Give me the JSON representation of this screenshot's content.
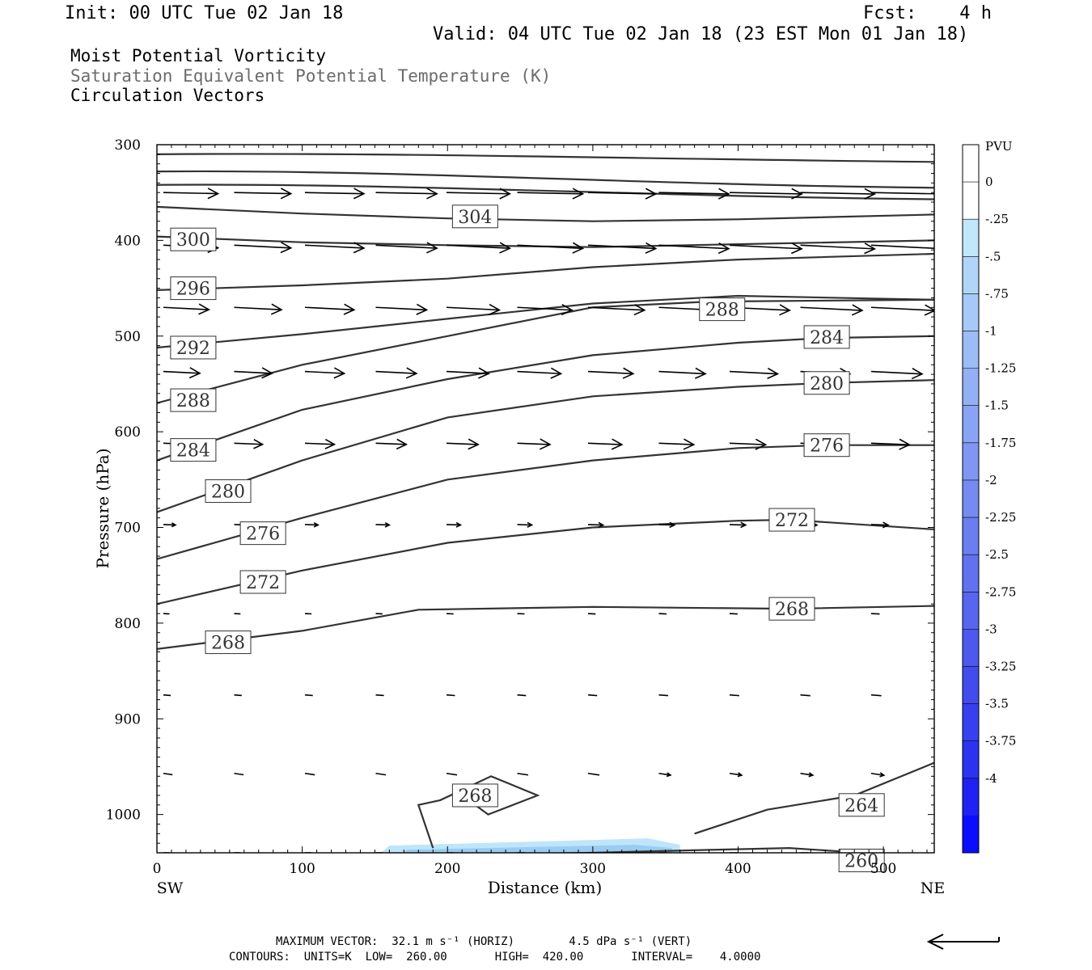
{
  "header": {
    "init": "Init: 00 UTC Tue 02 Jan 18",
    "fcst": "Fcst:    4 h",
    "valid": "Valid: 04 UTC Tue 02 Jan 18 (23 EST Mon 01 Jan 18)",
    "field1": "Moist Potential Vorticity",
    "field2": "Saturation Equivalent Potential Temperature (K)",
    "field3": "Circulation Vectors"
  },
  "footer": {
    "maxvec": "MAXIMUM VECTOR:  32.1 m s⁻¹ (HORIZ)        4.5 dPa s⁻¹ (VERT)",
    "contours": "CONTOURS:  UNITS=K  LOW=  260.00       HIGH=  420.00       INTERVAL=    4.0000"
  },
  "colors": {
    "contour": "#333333",
    "vector": "#000000",
    "pv_fill_light": "#bfe5fa",
    "pv_fill_mid": "#99ccf2"
  },
  "chart_data": {
    "type": "contour",
    "xlabel": "Distance (km)",
    "ylabel": "Pressure (hPa)",
    "x_left_label": "SW",
    "x_right_label": "NE",
    "xlim": [
      0,
      535
    ],
    "ylim": [
      1040,
      300
    ],
    "x_ticks": [
      0,
      100,
      200,
      300,
      400,
      500
    ],
    "y_ticks": [
      300,
      400,
      500,
      600,
      700,
      800,
      900,
      1000
    ],
    "colorbar": {
      "unit": "PVU",
      "labels": [
        "0",
        "-.25",
        "-.5",
        "-.75",
        "-1",
        "-1.25",
        "-1.5",
        "-1.75",
        "-2",
        "-2.25",
        "-2.5",
        "-2.75",
        "-3",
        "-3.25",
        "-3.5",
        "-3.75",
        "-4"
      ],
      "colors": [
        "#ffffff",
        "#ffffff",
        "#c2e6fb",
        "#b1d5f9",
        "#a6c9f7",
        "#9cbcf6",
        "#93b0f5",
        "#89a4f4",
        "#7f97f3",
        "#758bf2",
        "#6b7ef0",
        "#6172ef",
        "#5766ee",
        "#4c59ec",
        "#424ced",
        "#3740ee",
        "#2c33f0",
        "#1f22f3",
        "#0b0dff"
      ]
    },
    "theta_es_contours": [
      {
        "label": "304",
        "label_at": [
          219,
          375
        ],
        "points": [
          [
            0,
            365
          ],
          [
            100,
            372
          ],
          [
            200,
            377
          ],
          [
            300,
            380
          ],
          [
            400,
            378
          ],
          [
            535,
            373
          ]
        ]
      },
      {
        "label": "300",
        "label_at": [
          25,
          399
        ],
        "points": [
          [
            0,
            396
          ],
          [
            100,
            402
          ],
          [
            200,
            405
          ],
          [
            300,
            407
          ],
          [
            400,
            404
          ],
          [
            535,
            400
          ]
        ]
      },
      {
        "label": "296",
        "label_at": [
          25,
          450
        ],
        "points": [
          [
            0,
            452
          ],
          [
            100,
            447
          ],
          [
            200,
            440
          ],
          [
            300,
            428
          ],
          [
            400,
            420
          ],
          [
            535,
            414
          ]
        ]
      },
      {
        "label": "292",
        "label_at": [
          25,
          512
        ],
        "points": [
          [
            0,
            512
          ],
          [
            100,
            498
          ],
          [
            200,
            482
          ],
          [
            300,
            466
          ],
          [
            400,
            458
          ],
          [
            535,
            462
          ]
        ]
      },
      {
        "label": "288",
        "label_at": [
          25,
          567
        ],
        "points": [
          [
            0,
            570
          ],
          [
            100,
            530
          ],
          [
            200,
            500
          ],
          [
            300,
            470
          ],
          [
            380,
            464
          ],
          [
            535,
            462
          ]
        ]
      },
      {
        "label": "288",
        "label_at": [
          389,
          472
        ],
        "points": []
      },
      {
        "label": "284",
        "label_at": [
          25,
          619
        ],
        "points": [
          [
            0,
            630
          ],
          [
            100,
            577
          ],
          [
            200,
            545
          ],
          [
            300,
            520
          ],
          [
            400,
            507
          ],
          [
            460,
            502
          ],
          [
            535,
            500
          ]
        ]
      },
      {
        "label": "284",
        "label_at": [
          461,
          501
        ],
        "points": []
      },
      {
        "label": "280",
        "label_at": [
          49,
          662
        ],
        "points": [
          [
            0,
            684
          ],
          [
            100,
            630
          ],
          [
            200,
            585
          ],
          [
            300,
            563
          ],
          [
            400,
            553
          ],
          [
            460,
            549
          ],
          [
            535,
            546
          ]
        ]
      },
      {
        "label": "280",
        "label_at": [
          461,
          549
        ],
        "points": []
      },
      {
        "label": "276",
        "label_at": [
          73,
          706
        ],
        "points": [
          [
            0,
            733
          ],
          [
            100,
            690
          ],
          [
            200,
            650
          ],
          [
            300,
            630
          ],
          [
            400,
            617
          ],
          [
            460,
            614
          ],
          [
            535,
            614
          ]
        ]
      },
      {
        "label": "276",
        "label_at": [
          461,
          614
        ],
        "points": []
      },
      {
        "label": "272",
        "label_at": [
          73,
          757
        ],
        "points": [
          [
            0,
            780
          ],
          [
            100,
            745
          ],
          [
            200,
            716
          ],
          [
            300,
            700
          ],
          [
            400,
            693
          ],
          [
            435,
            692
          ],
          [
            535,
            702
          ]
        ]
      },
      {
        "label": "272",
        "label_at": [
          437,
          692
        ],
        "points": []
      },
      {
        "label": "268",
        "label_at": [
          49,
          820
        ],
        "points": [
          [
            0,
            827
          ],
          [
            100,
            808
          ],
          [
            180,
            786
          ],
          [
            300,
            783
          ],
          [
            435,
            785
          ],
          [
            535,
            782
          ]
        ]
      },
      {
        "label": "268",
        "label_at": [
          437,
          785
        ],
        "points": []
      },
      {
        "label": "268",
        "label_at": [
          219,
          980
        ],
        "points": [
          [
            210,
            980
          ],
          [
            228,
            1000
          ],
          [
            262,
            980
          ],
          [
            230,
            960
          ],
          [
            195,
            985
          ],
          [
            180,
            990
          ],
          [
            190,
            1035
          ]
        ]
      },
      {
        "label": "264",
        "label_at": [
          485,
          990
        ],
        "points": [
          [
            370,
            1020
          ],
          [
            420,
            995
          ],
          [
            480,
            980
          ],
          [
            535,
            946
          ]
        ]
      },
      {
        "label": "260",
        "label_at": [
          485,
          1048
        ],
        "points": [
          [
            0,
            1045
          ],
          [
            100,
            1043
          ],
          [
            200,
            1042
          ],
          [
            300,
            1040
          ],
          [
            380,
            1037
          ],
          [
            435,
            1035
          ],
          [
            535,
            1045
          ]
        ]
      }
    ],
    "pv_negative_region": {
      "x_range": [
        150,
        360
      ],
      "p_range": [
        1030,
        1045
      ],
      "value": "-.25 to -.5 PVU"
    },
    "vector_rows_hPa": [
      350,
      405,
      470,
      537,
      612,
      697,
      790,
      875,
      957,
      1040
    ]
  }
}
